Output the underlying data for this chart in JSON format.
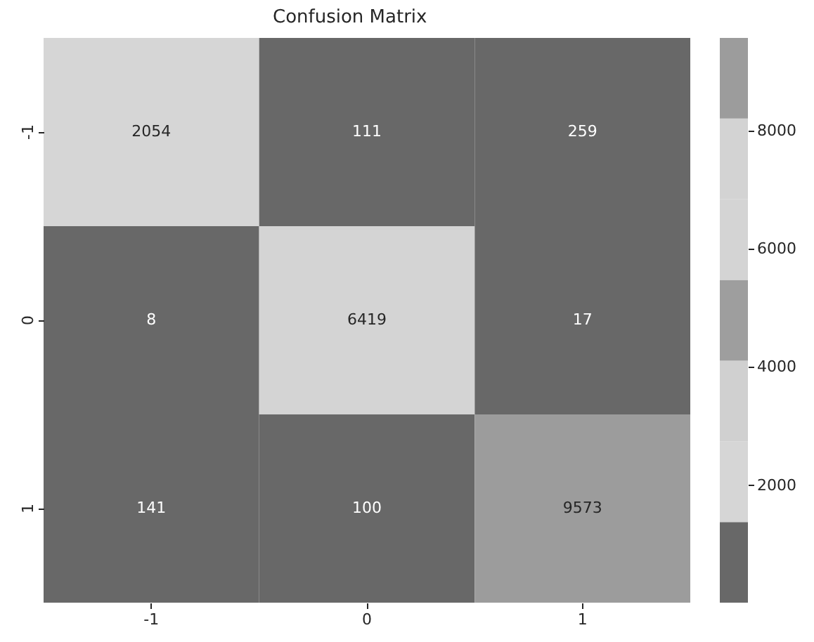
{
  "chart_data": {
    "type": "heatmap",
    "title": "Confusion Matrix",
    "categories": [
      "-1",
      "0",
      "1"
    ],
    "y_categories": [
      "-1",
      "0",
      "1"
    ],
    "cells": [
      [
        2054,
        111,
        259
      ],
      [
        8,
        6419,
        17
      ],
      [
        141,
        100,
        9573
      ]
    ],
    "data_labels": true,
    "clim": [
      8,
      9573
    ],
    "cticks": [
      2000,
      4000,
      6000,
      8000
    ],
    "colors": [
      "#686868",
      "#d6d6d6",
      "#d0d0d0",
      "#9e9e9e",
      "#d4d4d4",
      "#d3d3d3",
      "#9c9c9c"
    ]
  }
}
